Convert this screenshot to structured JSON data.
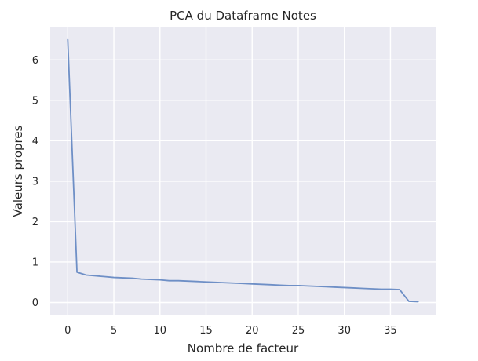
{
  "chart_data": {
    "type": "line",
    "title": "PCA du Dataframe Notes",
    "xlabel": "Nombre de facteur",
    "ylabel": "Valeurs propres",
    "x_ticks": [
      0,
      5,
      10,
      15,
      20,
      25,
      30,
      35
    ],
    "y_ticks": [
      0,
      1,
      2,
      3,
      4,
      5,
      6
    ],
    "xlim": [
      -1.9,
      39.9
    ],
    "ylim": [
      -0.32,
      6.82
    ],
    "grid": true,
    "background": "#EAEAF2",
    "line_color": "#6E8FC6",
    "series": [
      {
        "x": [
          0,
          1,
          2,
          3,
          4,
          5,
          6,
          7,
          8,
          9,
          10,
          11,
          12,
          13,
          14,
          15,
          16,
          17,
          18,
          19,
          20,
          21,
          22,
          23,
          24,
          25,
          26,
          27,
          28,
          29,
          30,
          31,
          32,
          33,
          34,
          35,
          36,
          37,
          38
        ],
        "values": [
          6.5,
          0.75,
          0.68,
          0.66,
          0.64,
          0.62,
          0.61,
          0.6,
          0.58,
          0.57,
          0.56,
          0.54,
          0.54,
          0.53,
          0.52,
          0.51,
          0.5,
          0.49,
          0.48,
          0.47,
          0.46,
          0.45,
          0.44,
          0.43,
          0.42,
          0.42,
          0.41,
          0.4,
          0.39,
          0.38,
          0.37,
          0.36,
          0.35,
          0.34,
          0.33,
          0.33,
          0.32,
          0.03,
          0.02
        ]
      }
    ]
  }
}
